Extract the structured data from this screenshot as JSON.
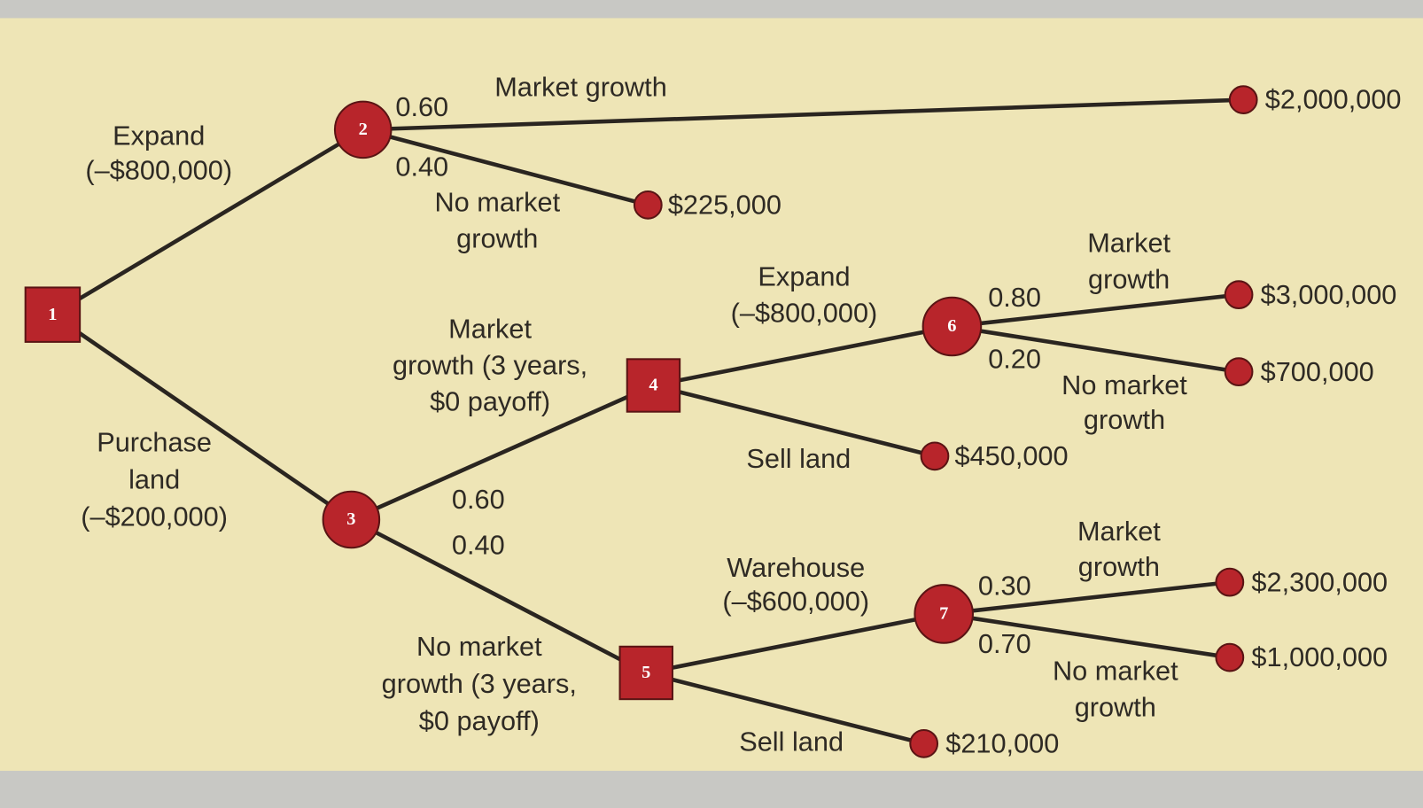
{
  "nodes": [
    "1",
    "2",
    "3",
    "4",
    "5",
    "6",
    "7"
  ],
  "branch_labels": [
    [
      "Expand",
      "(–$800,000)"
    ],
    [
      "Purchase",
      "land",
      "(–$200,000)"
    ],
    [
      "Market growth"
    ],
    [
      "No market",
      "growth"
    ],
    [
      "Market",
      "growth (3 years,",
      "$0 payoff)"
    ],
    [
      "No market",
      "growth (3 years,",
      "$0 payoff)"
    ],
    [
      "Expand",
      "(–$800,000)"
    ],
    [
      "Sell land"
    ],
    [
      "Market",
      "growth"
    ],
    [
      "No market",
      "growth"
    ],
    [
      "Warehouse",
      "(–$600,000)"
    ],
    [
      "Sell land"
    ],
    [
      "Market",
      "growth"
    ],
    [
      "No market",
      "growth"
    ]
  ],
  "probabilities": [
    "0.60",
    "0.40",
    "0.60",
    "0.40",
    "0.80",
    "0.20",
    "0.30",
    "0.70"
  ],
  "payoffs": [
    "$2,000,000",
    "$225,000",
    "$3,000,000",
    "$700,000",
    "$450,000",
    "$2,300,000",
    "$1,000,000",
    "$210,000"
  ]
}
